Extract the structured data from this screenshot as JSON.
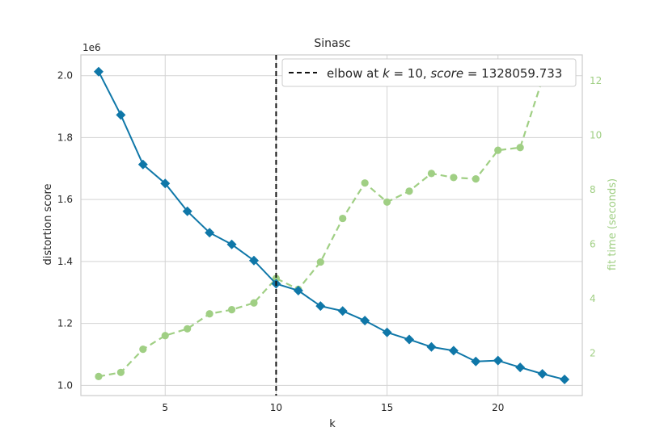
{
  "chart_data": {
    "type": "line",
    "title": "Sinasc",
    "xlabel": "k",
    "ylabel": "distortion score",
    "y_multiplier": "1e6",
    "y2label": "fit time (seconds)",
    "xlim": [
      1.2,
      23.8
    ],
    "ylim": [
      0.967,
      2.067
    ],
    "y2lim": [
      0.45,
      12.95
    ],
    "x_ticks": [
      5,
      10,
      15,
      20
    ],
    "y_ticks": [
      1.0,
      1.2,
      1.4,
      1.6,
      1.8,
      2.0
    ],
    "y_tick_labels": [
      "1.0",
      "1.2",
      "1.4",
      "1.6",
      "1.8",
      "2.0"
    ],
    "y2_ticks": [
      2,
      4,
      6,
      8,
      10,
      12
    ],
    "grid": true,
    "legend_position": "top-right",
    "legend_label": "elbow at k = 10, score = 1328059.733",
    "legend_prefix": "elbow at ",
    "legend_k_var": "k",
    "legend_k_val": " = 10, ",
    "legend_score_var": "score",
    "legend_score_val": " = 1328059.733",
    "elbow_k": 10,
    "colors": {
      "distortion": "#0f77a8",
      "fit_time": "#a0cf84",
      "elbow": "#111111",
      "grid": "#d3d3d3",
      "frame": "#cccccc"
    },
    "series": [
      {
        "axis": "left",
        "x": [
          2,
          3,
          4,
          5,
          6,
          7,
          8,
          9,
          10,
          11,
          12,
          13,
          14,
          15,
          16,
          17,
          18,
          19,
          20,
          21,
          22,
          23
        ],
        "values": [
          2.013,
          1.873,
          1.713,
          1.652,
          1.562,
          1.493,
          1.455,
          1.403,
          1.328,
          1.306,
          1.256,
          1.24,
          1.209,
          1.171,
          1.148,
          1.124,
          1.112,
          1.077,
          1.08,
          1.058,
          1.037,
          1.019
        ]
      },
      {
        "axis": "right",
        "x": [
          2,
          3,
          4,
          5,
          6,
          7,
          8,
          9,
          10,
          11,
          12,
          13,
          14,
          15,
          16,
          17,
          18,
          19,
          20,
          21,
          22,
          23
        ],
        "values": [
          1.15,
          1.3,
          2.15,
          2.65,
          2.9,
          3.45,
          3.6,
          3.85,
          4.75,
          4.35,
          5.35,
          6.95,
          8.25,
          7.55,
          7.95,
          8.6,
          8.45,
          8.4,
          9.45,
          9.55,
          12.05,
          12.5
        ]
      }
    ]
  }
}
